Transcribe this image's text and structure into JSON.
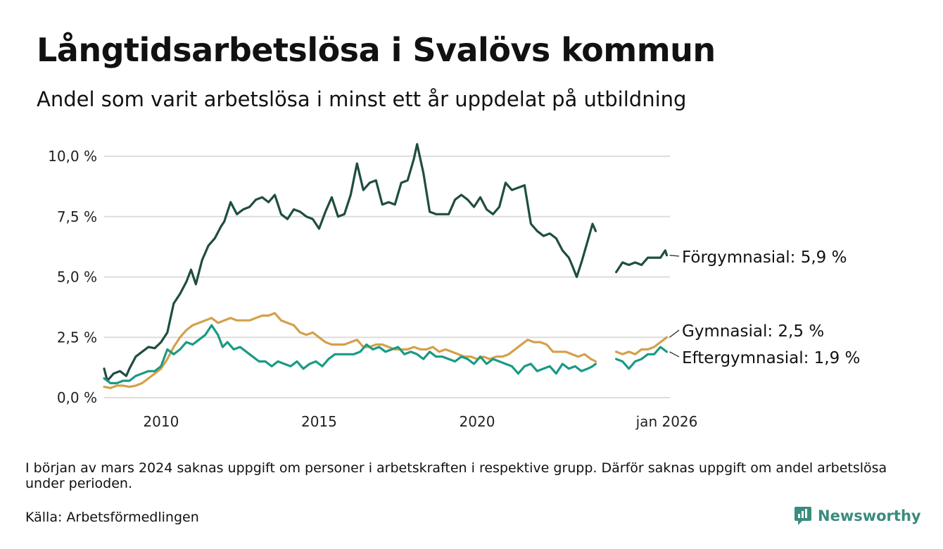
{
  "title": "Långtidsarbetslösa i Svalövs kommun",
  "subtitle": "Andel som varit arbetslösa i minst ett år uppdelat på utbildning",
  "note": "I början av mars 2024 saknas uppgift om personer i arbetskraften i respektive grupp. Därför saknas uppgift om andel arbetslösa under perioden.",
  "source": "Källa: Arbetsförmedlingen",
  "brand": {
    "name": "Newsworthy",
    "icon": "newsworthy-logo-icon"
  },
  "colors": {
    "forgymnasial": "#1f4d42",
    "gymnasial": "#d4a04a",
    "eftergymnasial": "#1a9a84",
    "grid": "#dddddd"
  },
  "chart_data": {
    "type": "line",
    "xlabel": "",
    "ylabel": "",
    "x_unit": "decimal year",
    "xlim": [
      2008.2,
      2026.1
    ],
    "ylim": [
      0,
      10.5
    ],
    "y_ticks": [
      {
        "value": 0,
        "label": "0,0 %"
      },
      {
        "value": 2.5,
        "label": "2,5 %"
      },
      {
        "value": 5,
        "label": "5,0 %"
      },
      {
        "value": 7.5,
        "label": "7,5 %"
      },
      {
        "value": 10,
        "label": "10,0 %"
      }
    ],
    "x_ticks": [
      {
        "value": 2010,
        "label": "2010"
      },
      {
        "value": 2015,
        "label": "2015"
      },
      {
        "value": 2020,
        "label": "2020"
      },
      {
        "value": 2026,
        "label": "jan 2026"
      }
    ],
    "gap": {
      "from": 2023.85,
      "to": 2024.4
    },
    "series": [
      {
        "name": "Förgymnasial",
        "end_label": "Förgymnasial: 5,9 %",
        "color": "#1f4d42",
        "points": [
          [
            2008.2,
            1.2
          ],
          [
            2008.3,
            0.7
          ],
          [
            2008.5,
            1.0
          ],
          [
            2008.7,
            1.1
          ],
          [
            2008.9,
            0.9
          ],
          [
            2009.0,
            1.2
          ],
          [
            2009.2,
            1.7
          ],
          [
            2009.4,
            1.9
          ],
          [
            2009.6,
            2.1
          ],
          [
            2009.8,
            2.05
          ],
          [
            2010.0,
            2.3
          ],
          [
            2010.2,
            2.7
          ],
          [
            2010.4,
            3.9
          ],
          [
            2010.6,
            4.3
          ],
          [
            2010.8,
            4.8
          ],
          [
            2010.95,
            5.3
          ],
          [
            2011.1,
            4.7
          ],
          [
            2011.3,
            5.7
          ],
          [
            2011.5,
            6.3
          ],
          [
            2011.7,
            6.6
          ],
          [
            2011.9,
            7.1
          ],
          [
            2012.0,
            7.3
          ],
          [
            2012.2,
            8.1
          ],
          [
            2012.4,
            7.6
          ],
          [
            2012.6,
            7.8
          ],
          [
            2012.8,
            7.9
          ],
          [
            2013.0,
            8.2
          ],
          [
            2013.2,
            8.3
          ],
          [
            2013.4,
            8.1
          ],
          [
            2013.6,
            8.4
          ],
          [
            2013.8,
            7.6
          ],
          [
            2014.0,
            7.4
          ],
          [
            2014.2,
            7.8
          ],
          [
            2014.4,
            7.7
          ],
          [
            2014.6,
            7.5
          ],
          [
            2014.8,
            7.4
          ],
          [
            2015.0,
            7.0
          ],
          [
            2015.2,
            7.7
          ],
          [
            2015.4,
            8.3
          ],
          [
            2015.6,
            7.5
          ],
          [
            2015.8,
            7.6
          ],
          [
            2016.0,
            8.4
          ],
          [
            2016.2,
            9.7
          ],
          [
            2016.4,
            8.6
          ],
          [
            2016.6,
            8.9
          ],
          [
            2016.8,
            9.0
          ],
          [
            2017.0,
            8.0
          ],
          [
            2017.2,
            8.1
          ],
          [
            2017.4,
            8.0
          ],
          [
            2017.6,
            8.9
          ],
          [
            2017.8,
            9.0
          ],
          [
            2018.0,
            9.9
          ],
          [
            2018.1,
            10.5
          ],
          [
            2018.3,
            9.3
          ],
          [
            2018.5,
            7.7
          ],
          [
            2018.7,
            7.6
          ],
          [
            2018.9,
            7.6
          ],
          [
            2019.1,
            7.6
          ],
          [
            2019.3,
            8.2
          ],
          [
            2019.5,
            8.4
          ],
          [
            2019.7,
            8.2
          ],
          [
            2019.9,
            7.9
          ],
          [
            2020.1,
            8.3
          ],
          [
            2020.3,
            7.8
          ],
          [
            2020.5,
            7.6
          ],
          [
            2020.7,
            7.9
          ],
          [
            2020.9,
            8.9
          ],
          [
            2021.1,
            8.6
          ],
          [
            2021.3,
            8.7
          ],
          [
            2021.5,
            8.8
          ],
          [
            2021.7,
            7.2
          ],
          [
            2021.9,
            6.9
          ],
          [
            2022.1,
            6.7
          ],
          [
            2022.3,
            6.8
          ],
          [
            2022.5,
            6.6
          ],
          [
            2022.7,
            6.1
          ],
          [
            2022.9,
            5.8
          ],
          [
            2023.0,
            5.5
          ],
          [
            2023.15,
            5.0
          ],
          [
            2023.3,
            5.6
          ],
          [
            2023.5,
            6.5
          ],
          [
            2023.65,
            7.2
          ],
          [
            2023.75,
            6.9
          ]
        ]
      },
      {
        "name": "Förgymnasial",
        "color": "#1f4d42",
        "continuation": true,
        "points": [
          [
            2024.4,
            5.2
          ],
          [
            2024.6,
            5.6
          ],
          [
            2024.8,
            5.5
          ],
          [
            2025.0,
            5.6
          ],
          [
            2025.2,
            5.5
          ],
          [
            2025.4,
            5.8
          ],
          [
            2025.6,
            5.8
          ],
          [
            2025.8,
            5.8
          ],
          [
            2025.95,
            6.1
          ],
          [
            2026.0,
            5.9
          ]
        ]
      },
      {
        "name": "Gymnasial",
        "end_label": "Gymnasial: 2,5 %",
        "color": "#d4a04a",
        "points": [
          [
            2008.2,
            0.45
          ],
          [
            2008.4,
            0.4
          ],
          [
            2008.6,
            0.5
          ],
          [
            2008.8,
            0.5
          ],
          [
            2009.0,
            0.45
          ],
          [
            2009.2,
            0.5
          ],
          [
            2009.4,
            0.6
          ],
          [
            2009.6,
            0.8
          ],
          [
            2009.8,
            1.0
          ],
          [
            2010.0,
            1.2
          ],
          [
            2010.2,
            1.6
          ],
          [
            2010.4,
            2.1
          ],
          [
            2010.6,
            2.5
          ],
          [
            2010.8,
            2.8
          ],
          [
            2011.0,
            3.0
          ],
          [
            2011.2,
            3.1
          ],
          [
            2011.4,
            3.2
          ],
          [
            2011.6,
            3.3
          ],
          [
            2011.8,
            3.1
          ],
          [
            2012.0,
            3.2
          ],
          [
            2012.2,
            3.3
          ],
          [
            2012.4,
            3.2
          ],
          [
            2012.6,
            3.2
          ],
          [
            2012.8,
            3.2
          ],
          [
            2013.0,
            3.3
          ],
          [
            2013.2,
            3.4
          ],
          [
            2013.4,
            3.4
          ],
          [
            2013.6,
            3.5
          ],
          [
            2013.8,
            3.2
          ],
          [
            2014.0,
            3.1
          ],
          [
            2014.2,
            3.0
          ],
          [
            2014.4,
            2.7
          ],
          [
            2014.6,
            2.6
          ],
          [
            2014.8,
            2.7
          ],
          [
            2015.0,
            2.5
          ],
          [
            2015.2,
            2.3
          ],
          [
            2015.4,
            2.2
          ],
          [
            2015.6,
            2.2
          ],
          [
            2015.8,
            2.2
          ],
          [
            2016.0,
            2.3
          ],
          [
            2016.2,
            2.4
          ],
          [
            2016.4,
            2.1
          ],
          [
            2016.6,
            2.1
          ],
          [
            2016.8,
            2.2
          ],
          [
            2017.0,
            2.2
          ],
          [
            2017.2,
            2.1
          ],
          [
            2017.4,
            2.0
          ],
          [
            2017.6,
            2.0
          ],
          [
            2017.8,
            2.0
          ],
          [
            2018.0,
            2.1
          ],
          [
            2018.2,
            2.0
          ],
          [
            2018.4,
            2.0
          ],
          [
            2018.6,
            2.1
          ],
          [
            2018.8,
            1.9
          ],
          [
            2019.0,
            2.0
          ],
          [
            2019.2,
            1.9
          ],
          [
            2019.4,
            1.8
          ],
          [
            2019.6,
            1.7
          ],
          [
            2019.8,
            1.7
          ],
          [
            2020.0,
            1.6
          ],
          [
            2020.2,
            1.7
          ],
          [
            2020.4,
            1.6
          ],
          [
            2020.6,
            1.7
          ],
          [
            2020.8,
            1.7
          ],
          [
            2021.0,
            1.8
          ],
          [
            2021.2,
            2.0
          ],
          [
            2021.4,
            2.2
          ],
          [
            2021.6,
            2.4
          ],
          [
            2021.8,
            2.3
          ],
          [
            2022.0,
            2.3
          ],
          [
            2022.2,
            2.2
          ],
          [
            2022.4,
            1.9
          ],
          [
            2022.6,
            1.9
          ],
          [
            2022.8,
            1.9
          ],
          [
            2023.0,
            1.8
          ],
          [
            2023.2,
            1.7
          ],
          [
            2023.4,
            1.8
          ],
          [
            2023.6,
            1.6
          ],
          [
            2023.75,
            1.5
          ]
        ]
      },
      {
        "name": "Gymnasial",
        "color": "#d4a04a",
        "continuation": true,
        "points": [
          [
            2024.4,
            1.9
          ],
          [
            2024.6,
            1.8
          ],
          [
            2024.8,
            1.9
          ],
          [
            2025.0,
            1.8
          ],
          [
            2025.2,
            2.0
          ],
          [
            2025.4,
            2.0
          ],
          [
            2025.6,
            2.1
          ],
          [
            2025.8,
            2.3
          ],
          [
            2026.0,
            2.5
          ]
        ]
      },
      {
        "name": "Eftergymnasial",
        "end_label": "Eftergymnasial: 1,9 %",
        "color": "#1a9a84",
        "points": [
          [
            2008.2,
            0.8
          ],
          [
            2008.4,
            0.6
          ],
          [
            2008.6,
            0.6
          ],
          [
            2008.8,
            0.7
          ],
          [
            2009.0,
            0.7
          ],
          [
            2009.2,
            0.9
          ],
          [
            2009.4,
            1.0
          ],
          [
            2009.6,
            1.1
          ],
          [
            2009.8,
            1.1
          ],
          [
            2010.0,
            1.3
          ],
          [
            2010.2,
            2.0
          ],
          [
            2010.4,
            1.8
          ],
          [
            2010.6,
            2.0
          ],
          [
            2010.8,
            2.3
          ],
          [
            2011.0,
            2.2
          ],
          [
            2011.2,
            2.4
          ],
          [
            2011.4,
            2.6
          ],
          [
            2011.6,
            3.0
          ],
          [
            2011.8,
            2.6
          ],
          [
            2011.95,
            2.1
          ],
          [
            2012.1,
            2.3
          ],
          [
            2012.3,
            2.0
          ],
          [
            2012.5,
            2.1
          ],
          [
            2012.7,
            1.9
          ],
          [
            2012.9,
            1.7
          ],
          [
            2013.1,
            1.5
          ],
          [
            2013.3,
            1.5
          ],
          [
            2013.5,
            1.3
          ],
          [
            2013.7,
            1.5
          ],
          [
            2013.9,
            1.4
          ],
          [
            2014.1,
            1.3
          ],
          [
            2014.3,
            1.5
          ],
          [
            2014.5,
            1.2
          ],
          [
            2014.7,
            1.4
          ],
          [
            2014.9,
            1.5
          ],
          [
            2015.1,
            1.3
          ],
          [
            2015.3,
            1.6
          ],
          [
            2015.5,
            1.8
          ],
          [
            2015.7,
            1.8
          ],
          [
            2015.9,
            1.8
          ],
          [
            2016.1,
            1.8
          ],
          [
            2016.3,
            1.9
          ],
          [
            2016.5,
            2.2
          ],
          [
            2016.7,
            2.0
          ],
          [
            2016.9,
            2.1
          ],
          [
            2017.1,
            1.9
          ],
          [
            2017.3,
            2.0
          ],
          [
            2017.5,
            2.1
          ],
          [
            2017.7,
            1.8
          ],
          [
            2017.9,
            1.9
          ],
          [
            2018.1,
            1.8
          ],
          [
            2018.3,
            1.6
          ],
          [
            2018.5,
            1.9
          ],
          [
            2018.7,
            1.7
          ],
          [
            2018.9,
            1.7
          ],
          [
            2019.1,
            1.6
          ],
          [
            2019.3,
            1.5
          ],
          [
            2019.5,
            1.7
          ],
          [
            2019.7,
            1.6
          ],
          [
            2019.9,
            1.4
          ],
          [
            2020.1,
            1.7
          ],
          [
            2020.3,
            1.4
          ],
          [
            2020.5,
            1.6
          ],
          [
            2020.7,
            1.5
          ],
          [
            2020.9,
            1.4
          ],
          [
            2021.1,
            1.3
          ],
          [
            2021.3,
            1.0
          ],
          [
            2021.5,
            1.3
          ],
          [
            2021.7,
            1.4
          ],
          [
            2021.9,
            1.1
          ],
          [
            2022.1,
            1.2
          ],
          [
            2022.3,
            1.3
          ],
          [
            2022.5,
            1.0
          ],
          [
            2022.7,
            1.4
          ],
          [
            2022.9,
            1.2
          ],
          [
            2023.1,
            1.3
          ],
          [
            2023.3,
            1.1
          ],
          [
            2023.5,
            1.2
          ],
          [
            2023.65,
            1.3
          ],
          [
            2023.75,
            1.4
          ]
        ]
      },
      {
        "name": "Eftergymnasial",
        "color": "#1a9a84",
        "continuation": true,
        "points": [
          [
            2024.4,
            1.6
          ],
          [
            2024.6,
            1.5
          ],
          [
            2024.8,
            1.2
          ],
          [
            2025.0,
            1.5
          ],
          [
            2025.2,
            1.6
          ],
          [
            2025.4,
            1.8
          ],
          [
            2025.6,
            1.8
          ],
          [
            2025.8,
            2.1
          ],
          [
            2026.0,
            1.9
          ]
        ]
      }
    ]
  }
}
